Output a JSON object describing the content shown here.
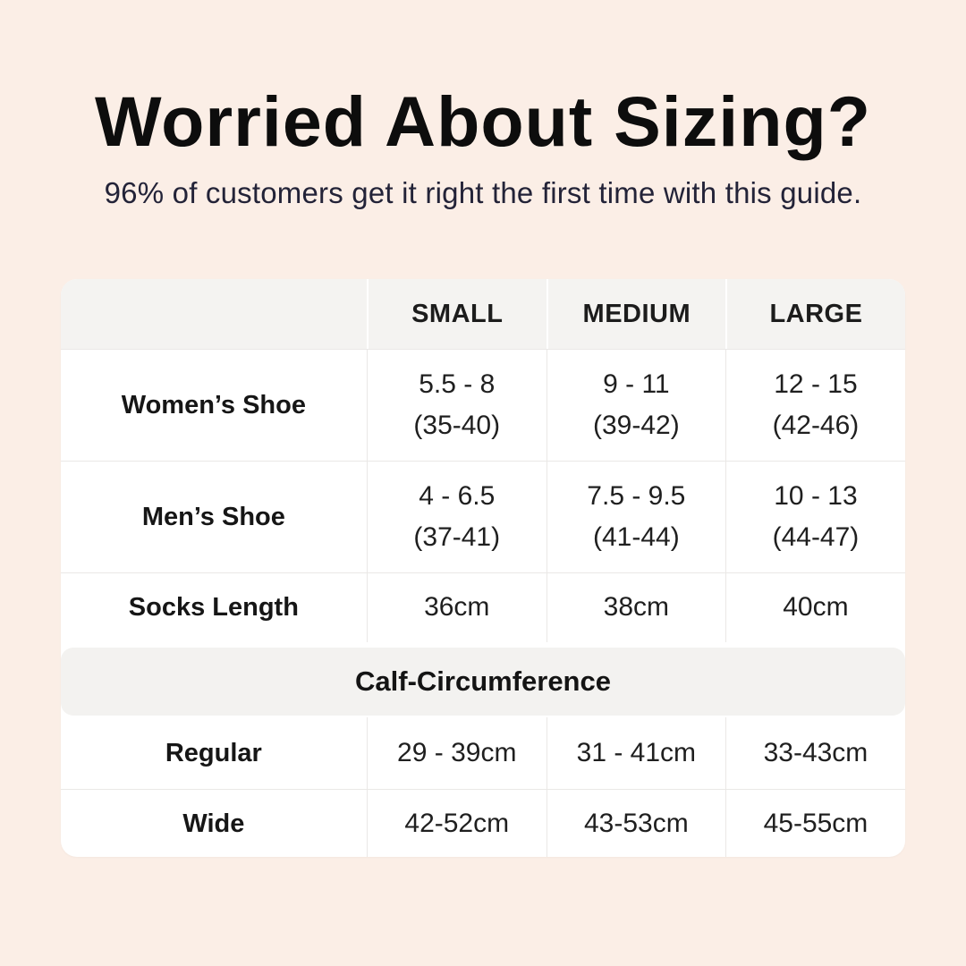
{
  "page": {
    "background_color": "#fbeee6",
    "card_color": "#ffffff",
    "band_color": "#f3f2f0",
    "subtitle_color": "#232338"
  },
  "header": {
    "title": "Worried About Sizing?",
    "subtitle": "96% of customers get it right the first time with this guide."
  },
  "table": {
    "columns": [
      "SMALL",
      "MEDIUM",
      "LARGE"
    ],
    "rows": [
      {
        "label": "Women’s Shoe",
        "values": [
          [
            "5.5 - 8",
            "(35-40)"
          ],
          [
            "9 - 11",
            "(39-42)"
          ],
          [
            "12 - 15",
            "(42-46)"
          ]
        ]
      },
      {
        "label": "Men’s Shoe",
        "values": [
          [
            "4 - 6.5",
            "(37-41)"
          ],
          [
            "7.5 - 9.5",
            "(41-44)"
          ],
          [
            "10 - 13",
            "(44-47)"
          ]
        ]
      },
      {
        "label": "Socks Length",
        "values_single": [
          "36cm",
          "38cm",
          "40cm"
        ]
      }
    ],
    "section": {
      "title": "Calf-Circumference"
    },
    "section_rows": [
      {
        "label": "Regular",
        "values": [
          "29 - 39cm",
          "31 - 41cm",
          "33-43cm"
        ]
      },
      {
        "label": "Wide",
        "values": [
          "42-52cm",
          "43-53cm",
          "45-55cm"
        ]
      }
    ]
  },
  "chart_data": {
    "type": "table",
    "title": "Worried About Sizing?",
    "subtitle": "96% of customers get it right the first time with this guide.",
    "columns": [
      "",
      "SMALL",
      "MEDIUM",
      "LARGE"
    ],
    "rows": [
      [
        "Women’s Shoe",
        "5.5 - 8 (35-40)",
        "9 - 11 (39-42)",
        "12 - 15 (42-46)"
      ],
      [
        "Men’s Shoe",
        "4 - 6.5 (37-41)",
        "7.5 - 9.5 (41-44)",
        "10 - 13 (44-47)"
      ],
      [
        "Socks Length",
        "36cm",
        "38cm",
        "40cm"
      ],
      [
        "Calf-Circumference",
        "",
        "",
        ""
      ],
      [
        "Regular",
        "29 - 39cm",
        "31 - 41cm",
        "33-43cm"
      ],
      [
        "Wide",
        "42-52cm",
        "43-53cm",
        "45-55cm"
      ]
    ]
  }
}
